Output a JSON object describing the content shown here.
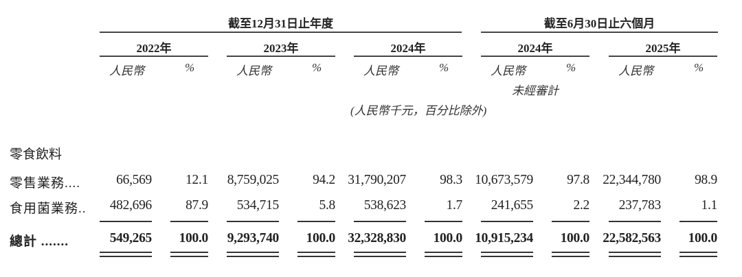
{
  "header": {
    "group_year_end": "截至12月31日止年度",
    "group_six_months": "截至6月30日止六個月",
    "currency_label": "人民幣",
    "percent_label": "%",
    "unaudited_label": "未經審計",
    "unit_note": "(人民幣千元，百分比除外)"
  },
  "columns": [
    {
      "year": "2022年"
    },
    {
      "year": "2023年"
    },
    {
      "year": "2024年"
    },
    {
      "year": "2024年"
    },
    {
      "year": "2025年"
    }
  ],
  "section_label": "零食飲料",
  "rows": [
    {
      "label": "零售業務....",
      "values": [
        "66,569",
        "12.1",
        "8,759,025",
        "94.2",
        "31,790,207",
        "98.3",
        "10,673,579",
        "97.8",
        "22,344,780",
        "98.9"
      ]
    },
    {
      "label": "食用菌業務..",
      "values": [
        "482,696",
        "87.9",
        "534,715",
        "5.8",
        "538,623",
        "1.7",
        "241,655",
        "2.2",
        "237,783",
        "1.1"
      ]
    },
    {
      "label": "總計 .......",
      "values": [
        "549,265",
        "100.0",
        "9,293,740",
        "100.0",
        "32,328,830",
        "100.0",
        "10,915,234",
        "100.0",
        "22,582,563",
        "100.0"
      ],
      "bold": true
    }
  ]
}
